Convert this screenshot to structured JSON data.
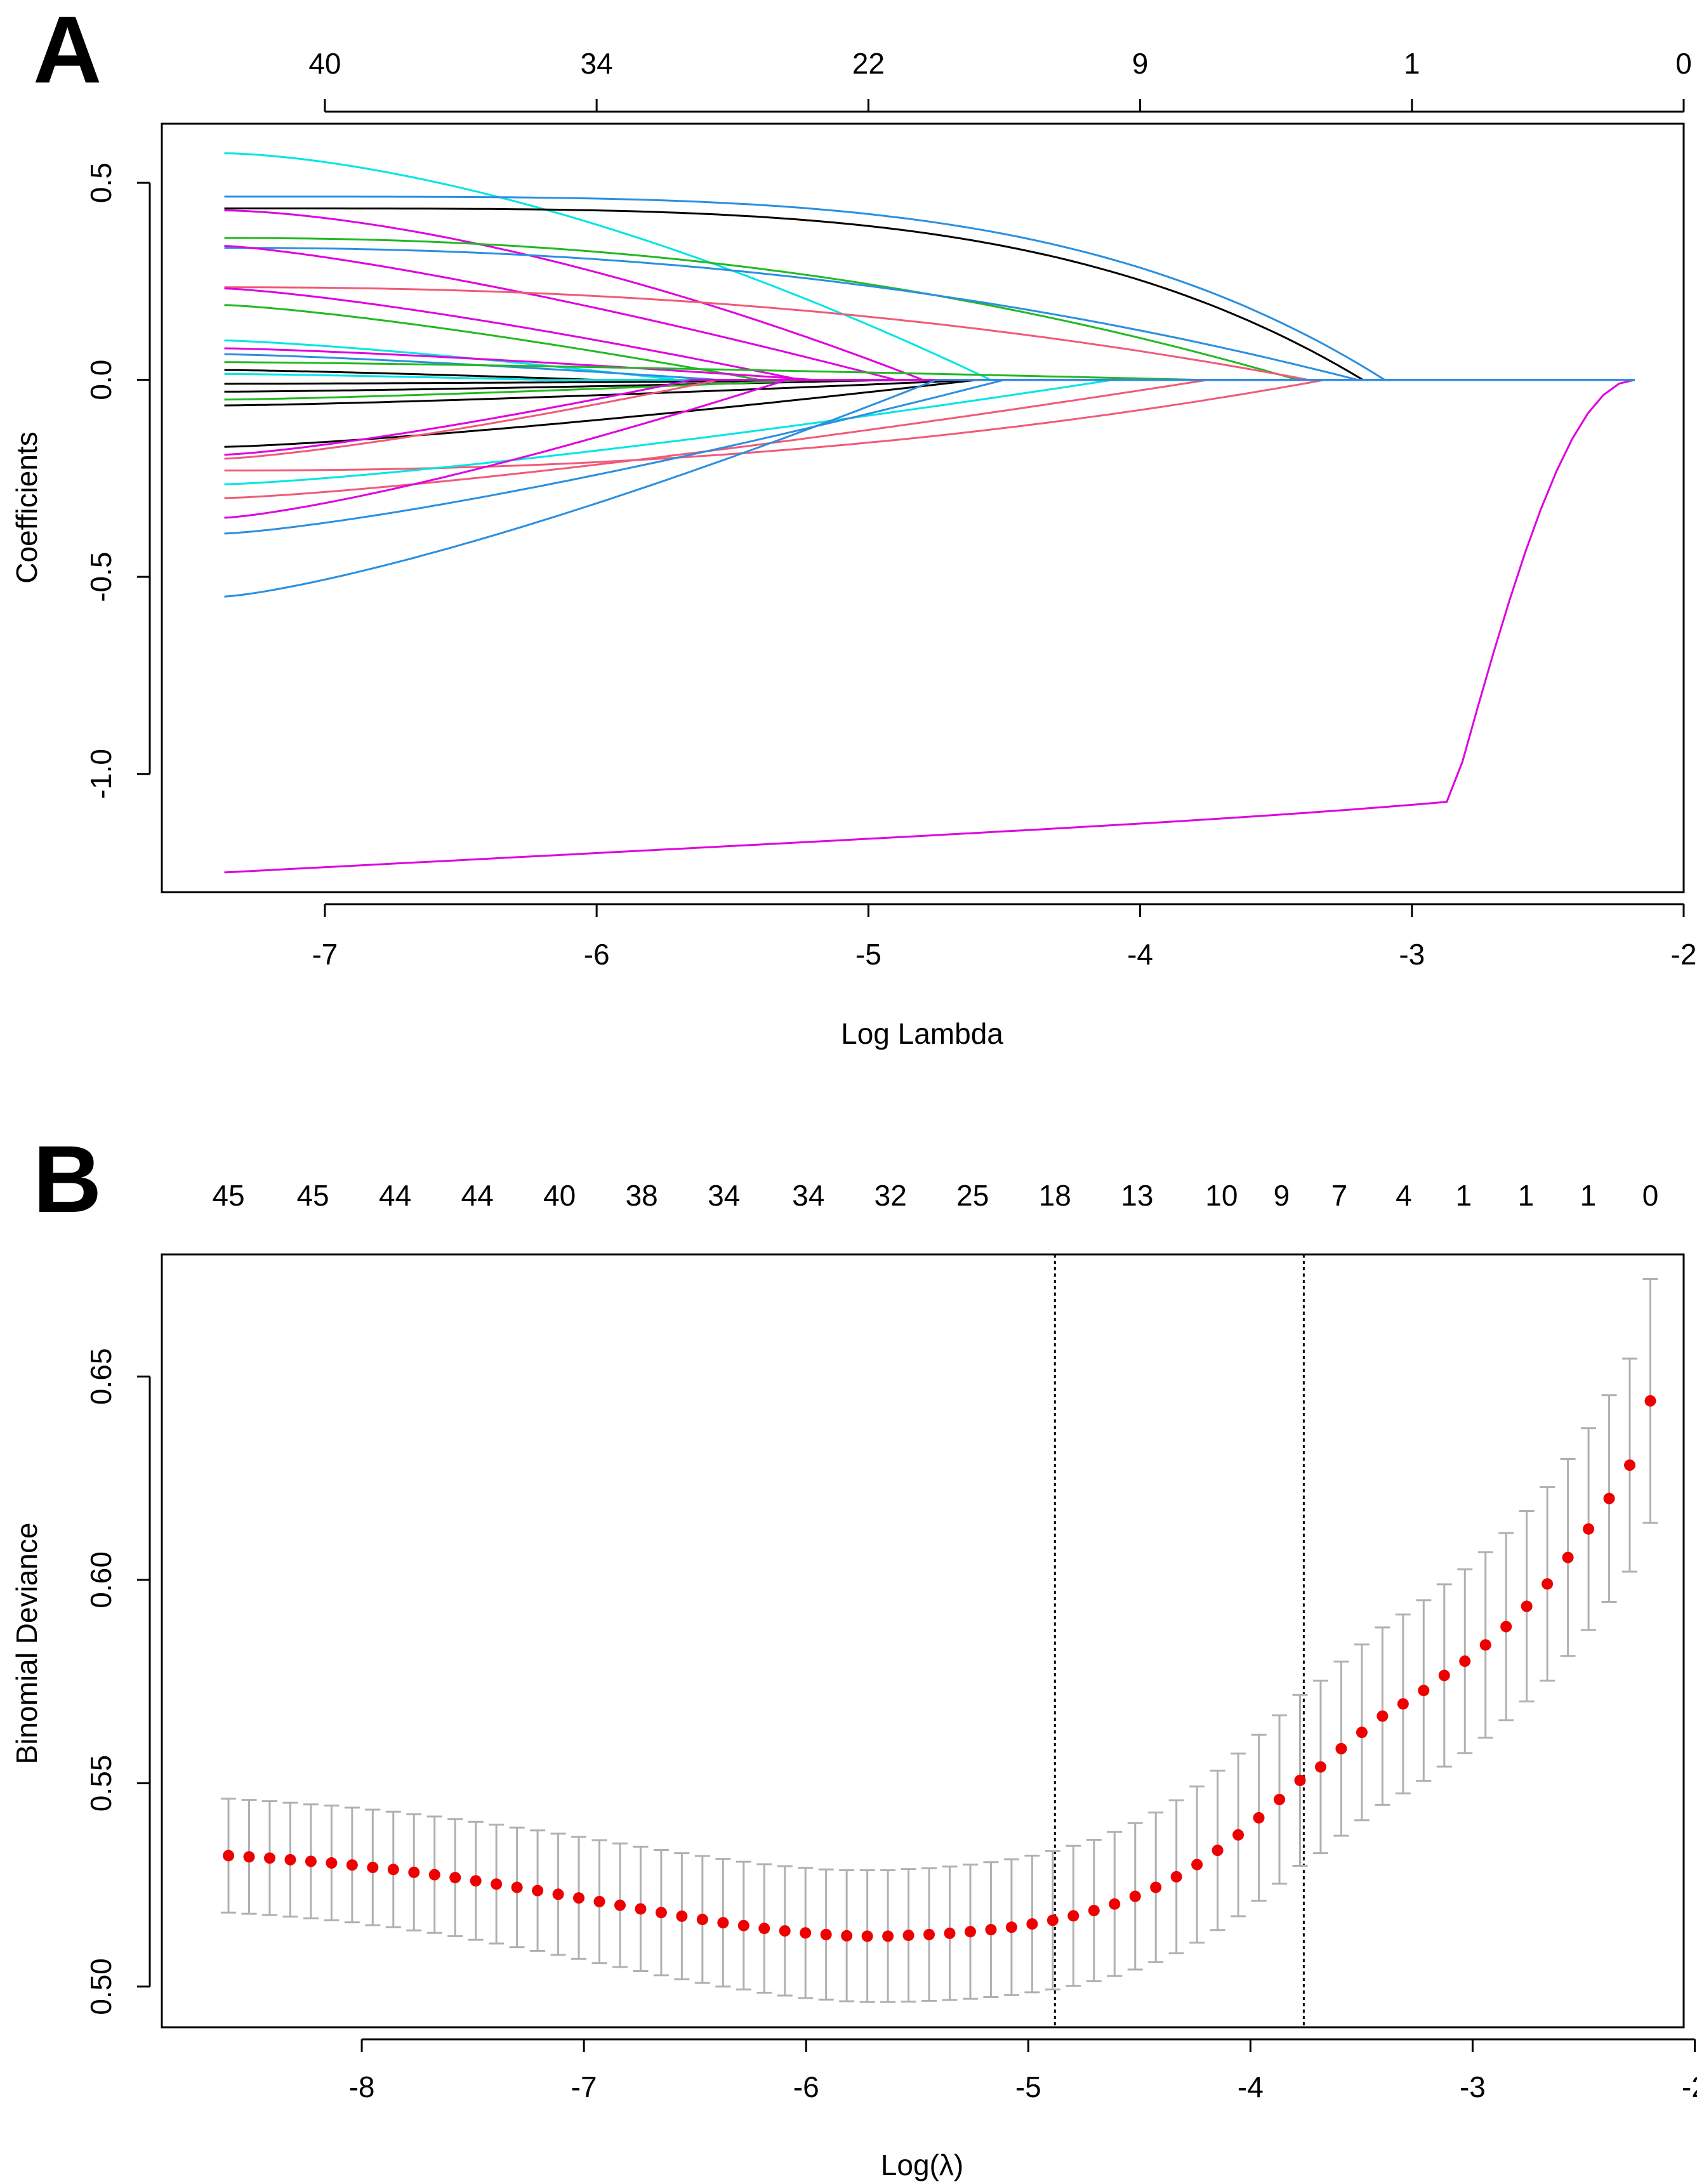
{
  "chart_data": [
    {
      "panel": "A",
      "type": "line",
      "title": "",
      "xlabel": "Log Lambda",
      "ylabel": "Coefficients",
      "xlim": [
        -7.6,
        -2.0
      ],
      "ylim": [
        -1.3,
        0.65
      ],
      "x_ticks": [
        -7,
        -6,
        -5,
        -4,
        -3,
        -2
      ],
      "x_tick_labels": [
        "-7",
        "-6",
        "-5",
        "-4",
        "-3",
        "-2"
      ],
      "y_ticks": [
        0.5,
        0.0,
        -0.5,
        -1.0
      ],
      "y_tick_labels": [
        "0.5",
        "0.0",
        "-0.5",
        "-1.0"
      ],
      "top_ticks": [
        -7,
        -6,
        -5,
        -4,
        -3,
        -2
      ],
      "top_labels": [
        "40",
        "34",
        "22",
        "9",
        "1",
        "0"
      ],
      "x_start": -7.37,
      "x_end": -2.18,
      "series": [
        {
          "name": "path-1",
          "color": "#df00df",
          "start": -1.25,
          "end": -2.18,
          "curve": "mag"
        },
        {
          "name": "path-2",
          "color": "#00e5e5",
          "start": 0.575,
          "end": -4.55,
          "curve": "cross",
          "cross_to": 0.0
        },
        {
          "name": "path-3",
          "color": "#2a8fe0",
          "start": 0.465,
          "end": -3.1,
          "curve": "steep"
        },
        {
          "name": "path-4",
          "color": "#000000",
          "start": 0.435,
          "end": -3.18,
          "curve": "steep"
        },
        {
          "name": "path-5",
          "color": "#df00df",
          "start": 0.43,
          "end": -4.8,
          "curve": "cross"
        },
        {
          "name": "path-6",
          "color": "#22b822",
          "start": 0.36,
          "end": -3.42,
          "curve": "slow"
        },
        {
          "name": "path-7",
          "color": "#2a8fe0",
          "start": 0.335,
          "end": -3.2,
          "curve": "slow"
        },
        {
          "name": "path-8",
          "color": "#df00df",
          "start": 0.34,
          "end": -4.9,
          "curve": "lin"
        },
        {
          "name": "path-9",
          "color": "#f05a78",
          "start": 0.235,
          "end": -3.38,
          "curve": "slow"
        },
        {
          "name": "path-10",
          "color": "#df00df",
          "start": 0.232,
          "end": -5.25,
          "curve": "lin"
        },
        {
          "name": "path-11",
          "color": "#22b822",
          "start": 0.19,
          "end": -5.4,
          "curve": "lin"
        },
        {
          "name": "path-12",
          "color": "#00e5e5",
          "start": 0.1,
          "end": -5.7,
          "curve": "lin"
        },
        {
          "name": "path-13",
          "color": "#df00df",
          "start": 0.08,
          "end": -5.2,
          "curve": "lin"
        },
        {
          "name": "path-14",
          "color": "#2a8fe0",
          "start": 0.065,
          "end": -5.55,
          "curve": "lin"
        },
        {
          "name": "path-15",
          "color": "#22b822",
          "start": 0.045,
          "end": -3.78,
          "curve": "lin"
        },
        {
          "name": "path-16",
          "color": "#000000",
          "start": 0.025,
          "end": -6.0,
          "curve": "lin"
        },
        {
          "name": "path-17",
          "color": "#00e5e5",
          "start": 0.015,
          "end": -6.2,
          "curve": "lin"
        },
        {
          "name": "path-18",
          "color": "#000000",
          "start": -0.01,
          "end": -4.7,
          "curve": "lin"
        },
        {
          "name": "path-19",
          "color": "#000000",
          "start": -0.03,
          "end": -4.9,
          "curve": "lin"
        },
        {
          "name": "path-20",
          "color": "#22b822",
          "start": -0.05,
          "end": -5.2,
          "curve": "lin"
        },
        {
          "name": "path-21",
          "color": "#000000",
          "start": -0.065,
          "end": -4.6,
          "curve": "lin"
        },
        {
          "name": "path-22",
          "color": "#000000",
          "start": -0.17,
          "end": -4.6,
          "curve": "lin"
        },
        {
          "name": "path-23",
          "color": "#f05a78",
          "start": -0.2,
          "end": -5.55,
          "curve": "lin"
        },
        {
          "name": "path-24",
          "color": "#df00df",
          "start": -0.19,
          "end": -5.65,
          "curve": "lin"
        },
        {
          "name": "path-25",
          "color": "#f05a78",
          "start": -0.23,
          "end": -3.32,
          "curve": "slow"
        },
        {
          "name": "path-26",
          "color": "#00e5e5",
          "start": -0.265,
          "end": -4.1,
          "curve": "lin"
        },
        {
          "name": "path-27",
          "color": "#f05a78",
          "start": -0.3,
          "end": -3.75,
          "curve": "lin"
        },
        {
          "name": "path-28",
          "color": "#df00df",
          "start": -0.35,
          "end": -5.3,
          "curve": "lin"
        },
        {
          "name": "path-29",
          "color": "#2a8fe0",
          "start": -0.39,
          "end": -4.5,
          "curve": "lin"
        },
        {
          "name": "path-30",
          "color": "#2a8fe0",
          "start": -0.55,
          "end": -4.75,
          "curve": "lin"
        }
      ]
    },
    {
      "panel": "B",
      "type": "scatter",
      "title": "",
      "xlabel": "Log(λ)",
      "ylabel": "Binomial Deviance",
      "xlim": [
        -8.9,
        -2.05
      ],
      "ylim": [
        0.49,
        0.68
      ],
      "x_ticks": [
        -8,
        -7,
        -6,
        -5,
        -4,
        -3,
        -2
      ],
      "x_tick_labels": [
        "-8",
        "-7",
        "-6",
        "-5",
        "-4",
        "-3",
        "-2"
      ],
      "y_ticks": [
        0.5,
        0.55,
        0.6,
        0.65
      ],
      "y_tick_labels": [
        "0.50",
        "0.55",
        "0.60",
        "0.65"
      ],
      "top_ticks": [
        -8.6,
        -8.22,
        -7.85,
        -7.48,
        -7.11,
        -6.74,
        -6.37,
        -5.99,
        -5.62,
        -5.25,
        -4.88,
        -4.51,
        -4.13,
        -3.86,
        -3.6,
        -3.31,
        -3.04,
        -2.76,
        -2.48,
        -2.2
      ],
      "top_labels": [
        "45",
        "45",
        "44",
        "44",
        "40",
        "38",
        "34",
        "34",
        "32",
        "25",
        "18",
        "13",
        "10",
        "9",
        "7",
        "4",
        "1",
        "1",
        "1",
        "0"
      ],
      "lambda_min": -4.88,
      "lambda_1se": -3.76,
      "points": {
        "n": 70,
        "x_start": -8.6,
        "x_end": -2.2,
        "y": [
          0.5322,
          0.5319,
          0.5316,
          0.5312,
          0.5308,
          0.5304,
          0.5299,
          0.5293,
          0.5288,
          0.5281,
          0.5275,
          0.5268,
          0.526,
          0.5252,
          0.5244,
          0.5236,
          0.5227,
          0.5218,
          0.5209,
          0.52,
          0.5191,
          0.5182,
          0.5173,
          0.5165,
          0.5157,
          0.515,
          0.5143,
          0.5137,
          0.5132,
          0.5128,
          0.5125,
          0.5124,
          0.5124,
          0.5126,
          0.5128,
          0.5131,
          0.5135,
          0.514,
          0.5146,
          0.5154,
          0.5163,
          0.5174,
          0.5187,
          0.5203,
          0.5222,
          0.5244,
          0.527,
          0.53,
          0.5335,
          0.5373,
          0.5415,
          0.546,
          0.5507,
          0.554,
          0.5585,
          0.5625,
          0.5665,
          0.5695,
          0.5728,
          0.5765,
          0.58,
          0.584,
          0.5885,
          0.5935,
          0.599,
          0.6055,
          0.6125,
          0.62,
          0.6282,
          0.644
        ],
        "err": [
          0.014,
          0.014,
          0.014,
          0.014,
          0.014,
          0.0141,
          0.0141,
          0.0142,
          0.0142,
          0.0143,
          0.0143,
          0.0144,
          0.0145,
          0.0146,
          0.0147,
          0.0148,
          0.0149,
          0.015,
          0.0151,
          0.0152,
          0.0153,
          0.0154,
          0.0155,
          0.0156,
          0.0157,
          0.0157,
          0.0158,
          0.0159,
          0.016,
          0.016,
          0.0161,
          0.0162,
          0.0162,
          0.0163,
          0.0163,
          0.0164,
          0.0165,
          0.0166,
          0.0167,
          0.0168,
          0.017,
          0.0172,
          0.0174,
          0.0177,
          0.018,
          0.0184,
          0.0188,
          0.0192,
          0.0196,
          0.02,
          0.0204,
          0.0207,
          0.021,
          0.0212,
          0.0214,
          0.0216,
          0.0218,
          0.022,
          0.0222,
          0.0224,
          0.0226,
          0.0228,
          0.023,
          0.0234,
          0.0238,
          0.0242,
          0.0248,
          0.0254,
          0.0262,
          0.03
        ]
      }
    }
  ],
  "panels": {
    "a_letter": "A",
    "b_letter": "B"
  }
}
